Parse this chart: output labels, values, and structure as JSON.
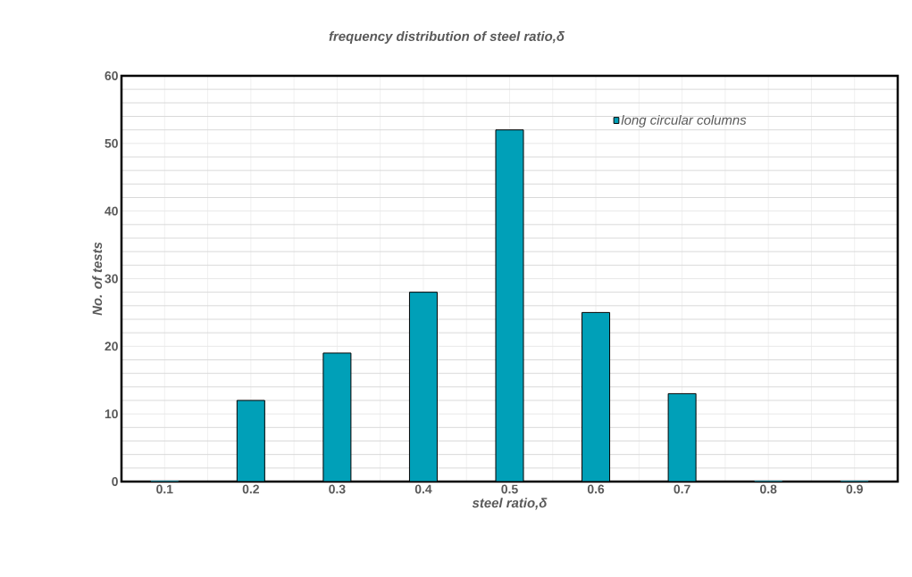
{
  "chart_data": {
    "type": "bar",
    "title": "frequency distribution of steel ratio,δ",
    "xlabel": "steel ratio,δ",
    "ylabel": "No. of tests",
    "categories": [
      "0.1",
      "0.2",
      "0.3",
      "0.4",
      "0.5",
      "0.6",
      "0.7",
      "0.8",
      "0.9"
    ],
    "series": [
      {
        "name": "long circular columns",
        "color": "#00a0b8",
        "values": [
          0,
          12,
          19,
          28,
          52,
          25,
          13,
          0,
          0
        ]
      }
    ],
    "ylim": [
      0,
      60
    ],
    "yticks": [
      0,
      10,
      20,
      30,
      40,
      50,
      60
    ],
    "grid": true,
    "legend": "top right"
  }
}
